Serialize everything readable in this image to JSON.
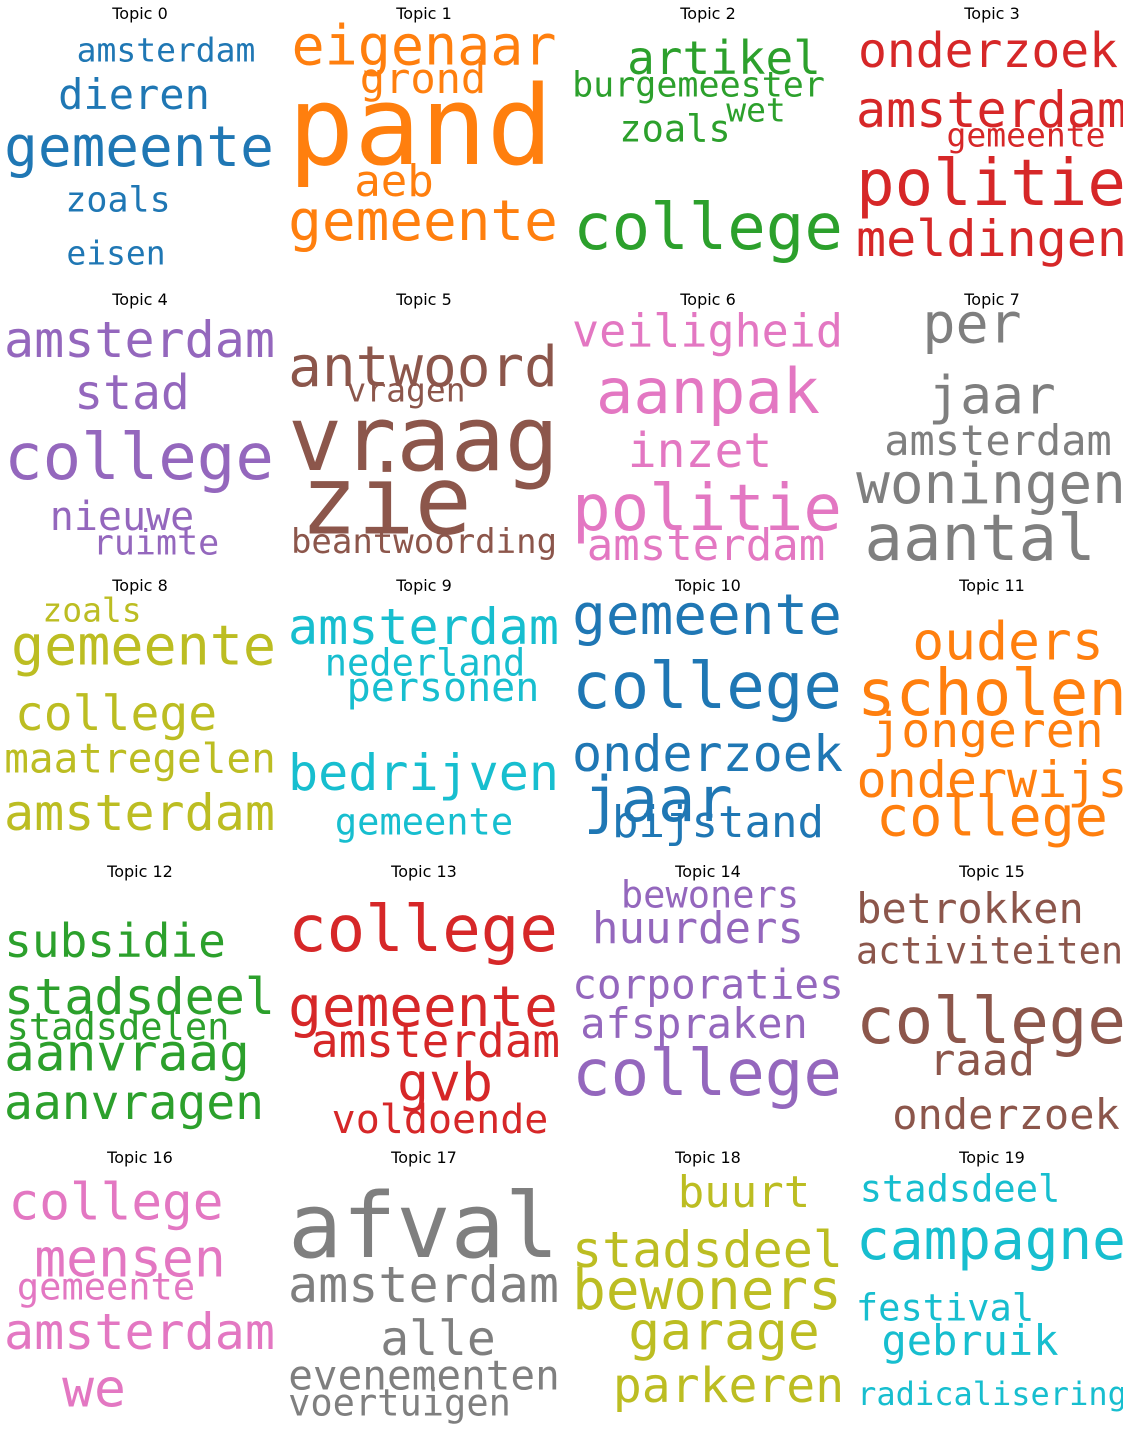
{
  "chart_data": {
    "type": "wordcloud",
    "layout": {
      "columns": 4,
      "rows": 5
    },
    "topics": [
      {
        "title": "Topic 0",
        "color": "#1f77b4",
        "words": [
          {
            "text": "amsterdam",
            "weight": 0.3
          },
          {
            "text": "dieren",
            "weight": 0.38
          },
          {
            "text": "gemeente",
            "weight": 0.62
          },
          {
            "text": "zoals",
            "weight": 0.32
          },
          {
            "text": "eisen",
            "weight": 0.3
          }
        ]
      },
      {
        "title": "Topic 1",
        "color": "#ff7f0e",
        "words": [
          {
            "text": "eigenaar",
            "weight": 0.5
          },
          {
            "text": "grond",
            "weight": 0.38
          },
          {
            "text": "pand",
            "weight": 1.0
          },
          {
            "text": "aeb",
            "weight": 0.4
          },
          {
            "text": "gemeente",
            "weight": 0.58
          }
        ]
      },
      {
        "title": "Topic 2",
        "color": "#2ca02c",
        "words": [
          {
            "text": "artikel",
            "weight": 0.42
          },
          {
            "text": "burgemeester",
            "weight": 0.32
          },
          {
            "text": "wet",
            "weight": 0.3
          },
          {
            "text": "zoals",
            "weight": 0.34
          },
          {
            "text": "college",
            "weight": 0.64
          }
        ]
      },
      {
        "title": "Topic 3",
        "color": "#d62728",
        "words": [
          {
            "text": "onderzoek",
            "weight": 0.44
          },
          {
            "text": "amsterdam",
            "weight": 0.46
          },
          {
            "text": "gemeente",
            "weight": 0.3
          },
          {
            "text": "politie",
            "weight": 0.66
          },
          {
            "text": "meldingen",
            "weight": 0.46
          }
        ]
      },
      {
        "title": "Topic 4",
        "color": "#9467bd",
        "words": [
          {
            "text": "amsterdam",
            "weight": 0.52
          },
          {
            "text": "stad",
            "weight": 0.44
          },
          {
            "text": "college",
            "weight": 0.66
          },
          {
            "text": "nieuwe",
            "weight": 0.36
          },
          {
            "text": "ruimte",
            "weight": 0.32
          }
        ]
      },
      {
        "title": "Topic 5",
        "color": "#8c564b",
        "words": [
          {
            "text": "antwoord",
            "weight": 0.58
          },
          {
            "text": "vragen",
            "weight": 0.3
          },
          {
            "text": "vraag",
            "weight": 0.92
          },
          {
            "text": "zie",
            "weight": 0.86
          },
          {
            "text": "beantwoording",
            "weight": 0.36
          }
        ]
      },
      {
        "title": "Topic 6",
        "color": "#e377c2",
        "words": [
          {
            "text": "veiligheid",
            "weight": 0.44
          },
          {
            "text": "aanpak",
            "weight": 0.56
          },
          {
            "text": "inzet",
            "weight": 0.44
          },
          {
            "text": "politie",
            "weight": 0.66
          },
          {
            "text": "amsterdam",
            "weight": 0.4
          }
        ]
      },
      {
        "title": "Topic 7",
        "color": "#7f7f7f",
        "words": [
          {
            "text": "per",
            "weight": 0.5
          },
          {
            "text": "jaar",
            "weight": 0.48
          },
          {
            "text": "amsterdam",
            "weight": 0.38
          },
          {
            "text": "woningen",
            "weight": 0.6
          },
          {
            "text": "aantal",
            "weight": 0.58
          }
        ]
      },
      {
        "title": "Topic 8",
        "color": "#bcbd22",
        "words": [
          {
            "text": "zoals",
            "weight": 0.3
          },
          {
            "text": "gemeente",
            "weight": 0.5
          },
          {
            "text": "college",
            "weight": 0.44
          },
          {
            "text": "maatregelen",
            "weight": 0.44
          },
          {
            "text": "amsterdam",
            "weight": 0.56
          }
        ]
      },
      {
        "title": "Topic 9",
        "color": "#17becf",
        "words": [
          {
            "text": "amsterdam",
            "weight": 0.52
          },
          {
            "text": "nederland",
            "weight": 0.34
          },
          {
            "text": "personen",
            "weight": 0.36
          },
          {
            "text": "bedrijven",
            "weight": 0.46
          },
          {
            "text": "gemeente",
            "weight": 0.34
          }
        ]
      },
      {
        "title": "Topic 10",
        "color": "#1f77b4",
        "words": [
          {
            "text": "gemeente",
            "weight": 0.52
          },
          {
            "text": "college",
            "weight": 0.66
          },
          {
            "text": "onderzoek",
            "weight": 0.56
          },
          {
            "text": "jaar",
            "weight": 0.56
          },
          {
            "text": "bijstand",
            "weight": 0.4
          }
        ]
      },
      {
        "title": "Topic 11",
        "color": "#ff7f0e",
        "words": [
          {
            "text": "ouders",
            "weight": 0.48
          },
          {
            "text": "scholen",
            "weight": 0.64
          },
          {
            "text": "jongeren",
            "weight": 0.44
          },
          {
            "text": "onderwijs",
            "weight": 0.56
          },
          {
            "text": "college",
            "weight": 0.5
          }
        ]
      },
      {
        "title": "Topic 12",
        "color": "#2ca02c",
        "words": [
          {
            "text": "subsidie",
            "weight": 0.42
          },
          {
            "text": "stadsdeel",
            "weight": 0.58
          },
          {
            "text": "stadsdelen",
            "weight": 0.34
          },
          {
            "text": "aanvraag",
            "weight": 0.46
          },
          {
            "text": "aanvragen",
            "weight": 0.44
          }
        ]
      },
      {
        "title": "Topic 13",
        "color": "#d62728",
        "words": [
          {
            "text": "college",
            "weight": 0.66
          },
          {
            "text": "gemeente",
            "weight": 0.6
          },
          {
            "text": "amsterdam",
            "weight": 0.42
          },
          {
            "text": "gvb",
            "weight": 0.48
          },
          {
            "text": "voldoende",
            "weight": 0.36
          }
        ]
      },
      {
        "title": "Topic 14",
        "color": "#9467bd",
        "words": [
          {
            "text": "bewoners",
            "weight": 0.34
          },
          {
            "text": "huurders",
            "weight": 0.4
          },
          {
            "text": "corporaties",
            "weight": 0.44
          },
          {
            "text": "afspraken",
            "weight": 0.38
          },
          {
            "text": "college",
            "weight": 0.66
          }
        ]
      },
      {
        "title": "Topic 15",
        "color": "#8c564b",
        "words": [
          {
            "text": "betrokken",
            "weight": 0.38
          },
          {
            "text": "activiteiten",
            "weight": 0.4
          },
          {
            "text": "college",
            "weight": 0.64
          },
          {
            "text": "raad",
            "weight": 0.4
          },
          {
            "text": "onderzoek",
            "weight": 0.38
          }
        ]
      },
      {
        "title": "Topic 16",
        "color": "#e377c2",
        "words": [
          {
            "text": "college",
            "weight": 0.46
          },
          {
            "text": "mensen",
            "weight": 0.48
          },
          {
            "text": "gemeente",
            "weight": 0.34
          },
          {
            "text": "amsterdam",
            "weight": 0.56
          },
          {
            "text": "we",
            "weight": 0.48
          }
        ]
      },
      {
        "title": "Topic 17",
        "color": "#7f7f7f",
        "words": [
          {
            "text": "afval",
            "weight": 0.88
          },
          {
            "text": "amsterdam",
            "weight": 0.52
          },
          {
            "text": "alle",
            "weight": 0.44
          },
          {
            "text": "evenementen",
            "weight": 0.46
          },
          {
            "text": "voertuigen",
            "weight": 0.34
          }
        ]
      },
      {
        "title": "Topic 18",
        "color": "#bcbd22",
        "words": [
          {
            "text": "buurt",
            "weight": 0.4
          },
          {
            "text": "stadsdeel",
            "weight": 0.52
          },
          {
            "text": "bewoners",
            "weight": 0.52
          },
          {
            "text": "garage",
            "weight": 0.48
          },
          {
            "text": "parkeren",
            "weight": 0.44
          }
        ]
      },
      {
        "title": "Topic 19",
        "color": "#17becf",
        "words": [
          {
            "text": "stadsdeel",
            "weight": 0.34
          },
          {
            "text": "campagne",
            "weight": 0.6
          },
          {
            "text": "festival",
            "weight": 0.34
          },
          {
            "text": "gebruik",
            "weight": 0.38
          },
          {
            "text": "radicalisering",
            "weight": 0.4
          }
        ]
      }
    ]
  }
}
